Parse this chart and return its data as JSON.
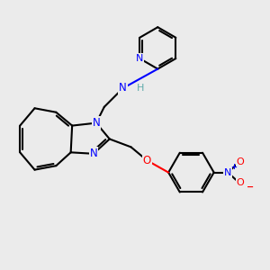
{
  "bg_color": "#ebebeb",
  "bond_color": "#000000",
  "N_color": "#0000ff",
  "O_color": "#ff0000",
  "H_color": "#5faaaa",
  "line_width": 1.5,
  "figsize": [
    3.0,
    3.0
  ],
  "dpi": 100,
  "xlim": [
    0,
    10
  ],
  "ylim": [
    0,
    10
  ]
}
